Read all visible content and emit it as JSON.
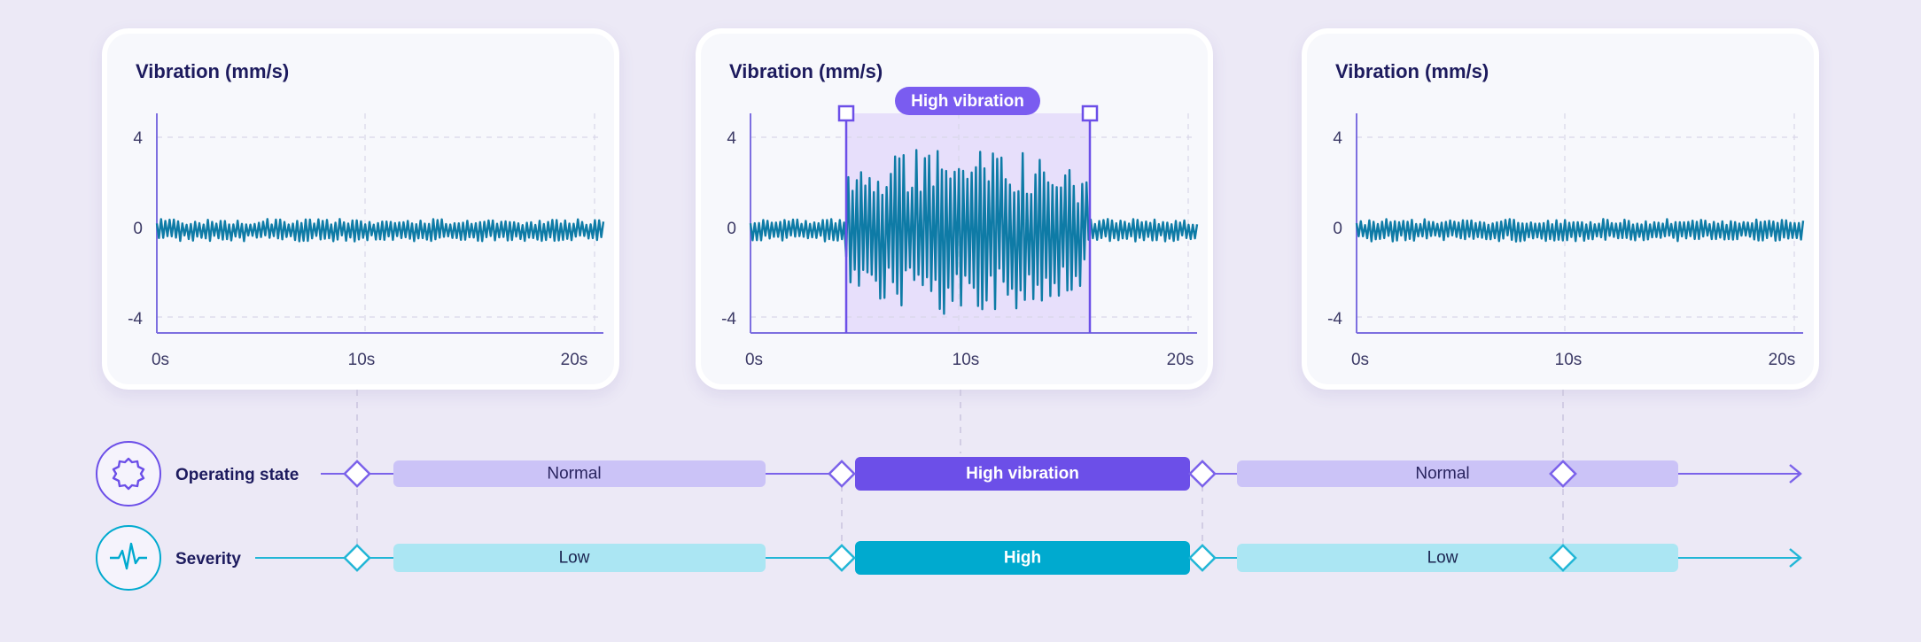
{
  "colors": {
    "background": "#ECE9F6",
    "purple_accent": "#6C4FE8",
    "purple_light": "#CBC3F7",
    "cyan_accent": "#00AACF",
    "cyan_light": "#ABE6F3",
    "signal": "#0E7BA6",
    "highlight_fill": "#E7DFFB"
  },
  "panels": [
    {
      "title": "Vibration (mm/s)",
      "y_ticks": [
        "4",
        "0",
        "-4"
      ],
      "x_ticks": [
        "0s",
        "10s",
        "20s"
      ]
    },
    {
      "title": "Vibration (mm/s)",
      "y_ticks": [
        "4",
        "0",
        "-4"
      ],
      "x_ticks": [
        "0s",
        "10s",
        "20s"
      ],
      "highlight_label": "High vibration"
    },
    {
      "title": "Vibration (mm/s)",
      "y_ticks": [
        "4",
        "0",
        "-4"
      ],
      "x_ticks": [
        "0s",
        "10s",
        "20s"
      ]
    }
  ],
  "chart_data": [
    {
      "type": "line",
      "title": "Vibration (mm/s)",
      "x_unit": "s",
      "xlim": [
        0,
        21
      ],
      "ylim": [
        -5,
        5
      ],
      "baseline_amplitude": 0.5,
      "signal": "low-amplitude noise around 0"
    },
    {
      "type": "line",
      "title": "Vibration (mm/s)",
      "x_unit": "s",
      "xlim": [
        0,
        21
      ],
      "ylim": [
        -5,
        5
      ],
      "baseline_amplitude": 0.5,
      "burst": {
        "start": 4.5,
        "end": 15.8,
        "peak": 3.8,
        "trough": -3.2
      },
      "annotation": "High vibration"
    },
    {
      "type": "line",
      "title": "Vibration (mm/s)",
      "x_unit": "s",
      "xlim": [
        0,
        21
      ],
      "ylim": [
        -5,
        5
      ],
      "baseline_amplitude": 0.5,
      "signal": "low-amplitude noise around 0"
    }
  ],
  "lanes": [
    {
      "key": "state",
      "label": "Operating state",
      "icon": "gear-icon",
      "segments": [
        "Normal",
        "High vibration",
        "Normal"
      ]
    },
    {
      "key": "severity",
      "label": "Severity",
      "icon": "pulse-icon",
      "segments": [
        "Low",
        "High",
        "Low"
      ]
    }
  ]
}
